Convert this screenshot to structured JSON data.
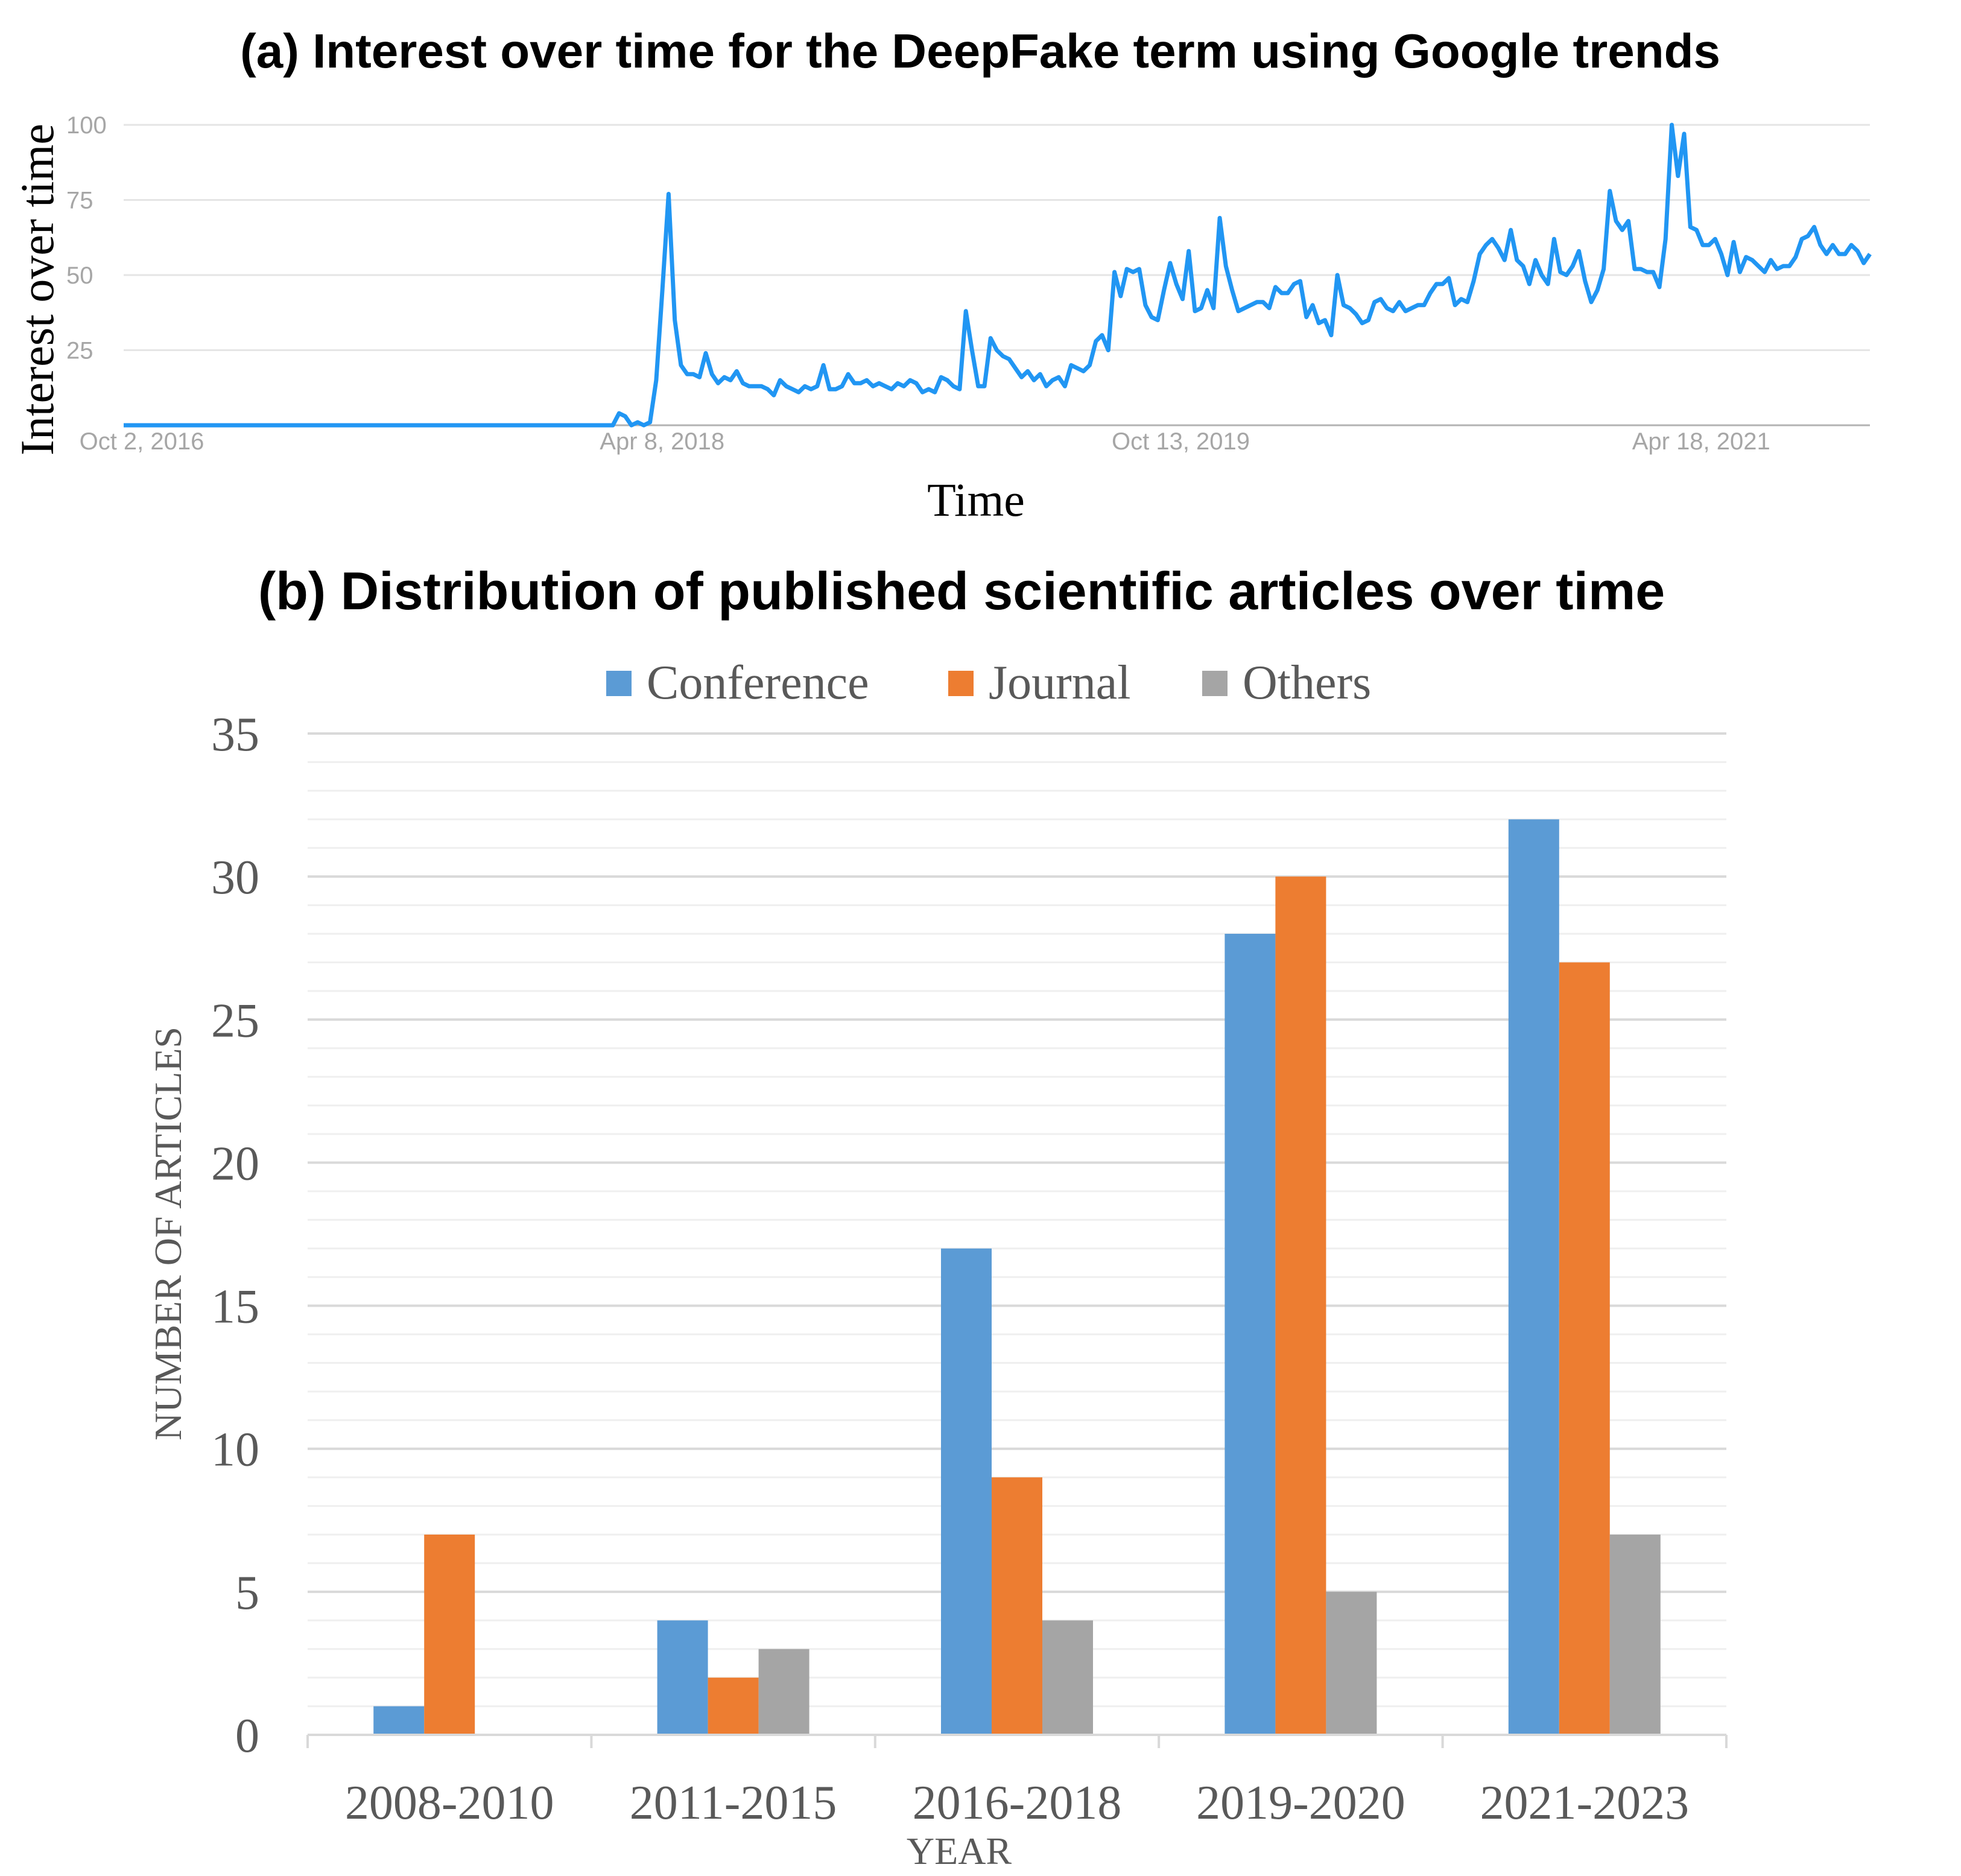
{
  "chart_data": [
    {
      "type": "line",
      "title": "(a) Interest over time for the DeepFake term using Google trends",
      "xlabel": "Time",
      "ylabel": "Interest over time",
      "ylim": [
        0,
        100
      ],
      "yticks": [
        "25",
        "50",
        "75",
        "100"
      ],
      "xticks": [
        "Oct 2, 2016",
        "Apr 8, 2018",
        "Oct 13, 2019",
        "Apr 18, 2021"
      ],
      "series": [
        {
          "name": "DeepFake",
          "color": "#2196f3",
          "values": [
            0,
            0,
            0,
            0,
            0,
            0,
            0,
            0,
            0,
            0,
            0,
            0,
            0,
            0,
            0,
            0,
            0,
            0,
            0,
            0,
            0,
            0,
            0,
            0,
            0,
            0,
            0,
            0,
            0,
            0,
            0,
            0,
            0,
            0,
            0,
            0,
            0,
            0,
            0,
            0,
            0,
            0,
            0,
            0,
            0,
            0,
            0,
            0,
            0,
            0,
            0,
            0,
            0,
            0,
            0,
            0,
            0,
            0,
            0,
            0,
            0,
            0,
            0,
            0,
            0,
            0,
            0,
            0,
            0,
            0,
            0,
            0,
            0,
            0,
            0,
            0,
            0,
            0,
            0,
            0,
            4,
            3,
            0,
            1,
            0,
            1,
            15,
            45,
            77,
            35,
            20,
            17,
            17,
            16,
            24,
            17,
            14,
            16,
            15,
            18,
            14,
            13,
            13,
            13,
            12,
            10,
            15,
            13,
            12,
            11,
            13,
            12,
            13,
            20,
            12,
            12,
            13,
            17,
            14,
            14,
            15,
            13,
            14,
            13,
            12,
            14,
            13,
            15,
            14,
            11,
            12,
            11,
            16,
            15,
            13,
            12,
            38,
            25,
            13,
            13,
            29,
            25,
            23,
            22,
            19,
            16,
            18,
            15,
            17,
            13,
            15,
            16,
            13,
            20,
            19,
            18,
            20,
            28,
            30,
            25,
            51,
            43,
            52,
            51,
            52,
            40,
            36,
            35,
            45,
            54,
            47,
            42,
            58,
            38,
            39,
            45,
            39,
            69,
            53,
            45,
            38,
            39,
            40,
            41,
            41,
            39,
            46,
            44,
            44,
            47,
            48,
            36,
            40,
            34,
            35,
            30,
            50,
            40,
            39,
            37,
            34,
            35,
            41,
            42,
            39,
            38,
            41,
            38,
            39,
            40,
            40,
            44,
            47,
            47,
            49,
            40,
            42,
            41,
            48,
            57,
            60,
            62,
            59,
            55,
            65,
            55,
            53,
            47,
            55,
            50,
            47,
            62,
            51,
            50,
            53,
            58,
            48,
            41,
            45,
            52,
            78,
            68,
            65,
            68,
            52,
            52,
            51,
            51,
            46,
            62,
            100,
            83,
            97,
            66,
            65,
            60,
            60,
            62,
            57,
            50,
            61,
            51,
            56,
            55,
            53,
            51,
            55,
            52,
            53,
            53,
            56,
            62,
            63,
            66,
            60,
            57,
            60,
            57,
            57,
            60,
            58,
            54,
            57
          ]
        }
      ]
    },
    {
      "type": "bar",
      "title": "(b) Distribution of published scientific articles over time",
      "xlabel": "YEAR",
      "ylabel": "NUMBER OF ARTICLES",
      "ylim": [
        0,
        35
      ],
      "yticks": [
        "0",
        "5",
        "10",
        "15",
        "20",
        "25",
        "30",
        "35"
      ],
      "legend": "top",
      "categories": [
        "2008-2010",
        "2011-2015",
        "2016-2018",
        "2019-2020",
        "2021-2023"
      ],
      "series": [
        {
          "name": "Conference",
          "color": "#5b9bd5",
          "values": [
            1,
            4,
            17,
            28,
            32
          ]
        },
        {
          "name": "Journal",
          "color": "#ed7d31",
          "values": [
            7,
            2,
            9,
            30,
            27
          ]
        },
        {
          "name": "Others",
          "color": "#a5a5a5",
          "values": [
            0,
            3,
            4,
            5,
            7
          ]
        }
      ]
    }
  ]
}
